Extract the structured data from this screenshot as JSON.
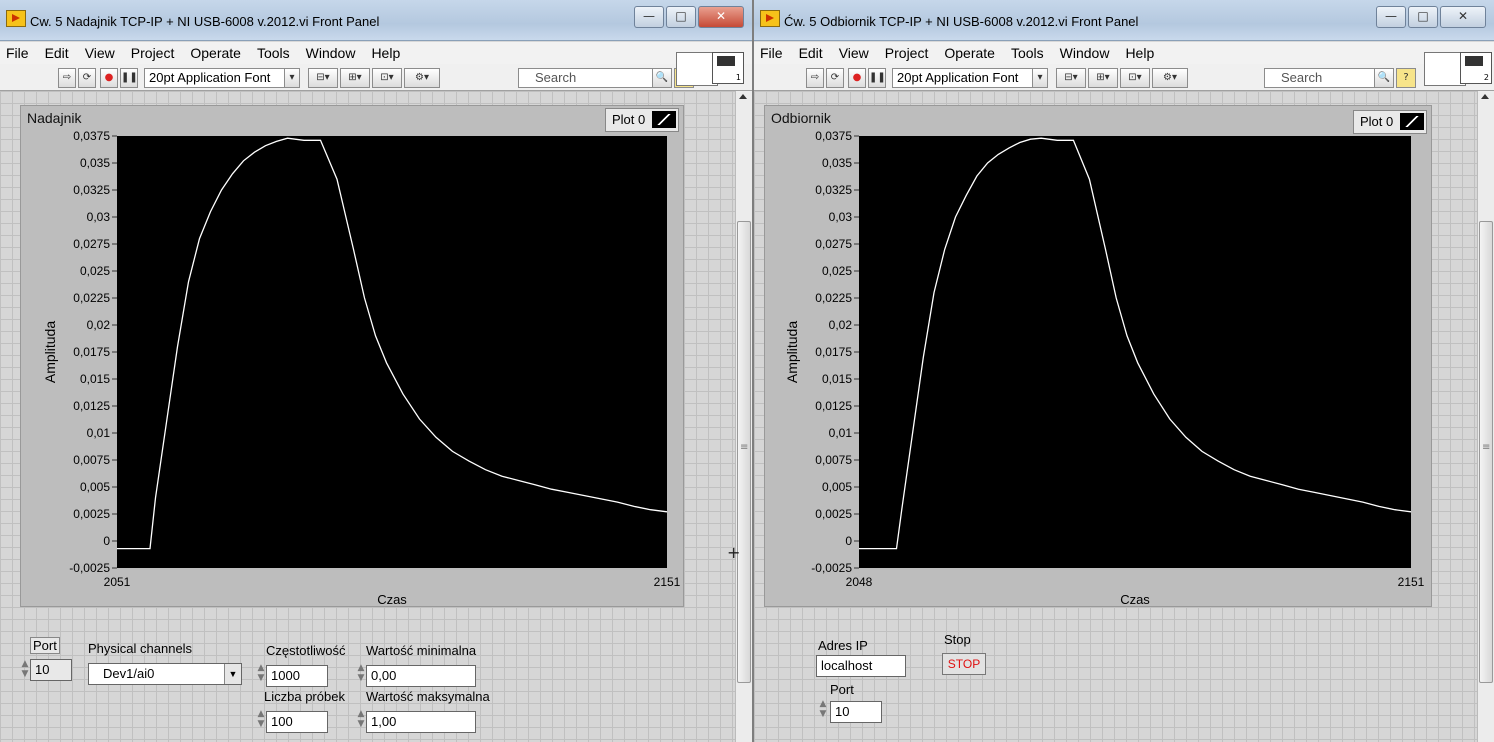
{
  "left_window": {
    "title": "Cw. 5 Nadajnik TCP-IP + NI USB-6008 v.2012.vi Front Panel",
    "menu": [
      "File",
      "Edit",
      "View",
      "Project",
      "Operate",
      "Tools",
      "Window",
      "Help"
    ],
    "font_selector": "20pt Application Font",
    "search_placeholder": "Search",
    "vi_icon_number": "1",
    "graph": {
      "label": "Nadajnik",
      "legend": "Plot 0",
      "ylabel": "Amplituda",
      "xlabel": "Czas",
      "x_min": "2051",
      "x_max": "2151",
      "y_ticks": [
        "0,0375",
        "0,035",
        "0,0325",
        "0,03",
        "0,0275",
        "0,025",
        "0,0225",
        "0,02",
        "0,0175",
        "0,015",
        "0,0125",
        "0,01",
        "0,0075",
        "0,005",
        "0,0025",
        "0",
        "-0,0025"
      ]
    },
    "controls": {
      "port_label": "Port",
      "port_value": "10",
      "physical_channels_label": "Physical channels",
      "physical_channels_value": "Dev1/ai0",
      "czestotliwosc_label": "Częstotliwość",
      "czestotliwosc_value": "1000",
      "liczba_probek_label": "Liczba próbek",
      "liczba_probek_value": "100",
      "min_label": "Wartość minimalna",
      "min_value": "0,00",
      "max_label": "Wartość maksymalna",
      "max_value": "1,00"
    }
  },
  "right_window": {
    "title": "Ćw. 5 Odbiornik TCP-IP + NI USB-6008 v.2012.vi Front Panel",
    "menu": [
      "File",
      "Edit",
      "View",
      "Project",
      "Operate",
      "Tools",
      "Window",
      "Help"
    ],
    "font_selector": "20pt Application Font",
    "search_placeholder": "Search",
    "vi_icon_number": "2",
    "graph": {
      "label": "Odbiornik",
      "legend": "Plot 0",
      "ylabel": "Amplituda",
      "xlabel": "Czas",
      "x_min": "2048",
      "x_max": "2151",
      "y_ticks": [
        "0,0375",
        "0,035",
        "0,0325",
        "0,03",
        "0,0275",
        "0,025",
        "0,0225",
        "0,02",
        "0,0175",
        "0,015",
        "0,0125",
        "0,01",
        "0,0075",
        "0,005",
        "0,0025",
        "0",
        "-0,0025"
      ]
    },
    "controls": {
      "adres_ip_label": "Adres IP",
      "adres_ip_value": "localhost",
      "stop_label": "Stop",
      "stop_button": "STOP",
      "port_label": "Port",
      "port_value": "10"
    }
  },
  "chart_data": [
    {
      "type": "line",
      "title": "Nadajnik",
      "xlabel": "Czas",
      "ylabel": "Amplituda",
      "xlim": [
        2051,
        2151
      ],
      "ylim": [
        -0.0025,
        0.0375
      ],
      "series": [
        {
          "name": "Plot 0",
          "color": "#ffffff",
          "x": [
            2051,
            2057,
            2058,
            2060,
            2062,
            2064,
            2066,
            2068,
            2070,
            2072,
            2074,
            2076,
            2078,
            2080,
            2082,
            2085,
            2088,
            2091,
            2094,
            2096,
            2098,
            2100,
            2103,
            2106,
            2109,
            2112,
            2115,
            2118,
            2121,
            2124,
            2127,
            2130,
            2133,
            2136,
            2139,
            2142,
            2145,
            2148,
            2151
          ],
          "y": [
            -0.0007,
            -0.0007,
            0.004,
            0.011,
            0.018,
            0.024,
            0.028,
            0.0305,
            0.0325,
            0.034,
            0.0352,
            0.036,
            0.0366,
            0.037,
            0.0373,
            0.0371,
            0.0371,
            0.0335,
            0.027,
            0.0225,
            0.019,
            0.0165,
            0.0136,
            0.0113,
            0.0096,
            0.0083,
            0.0074,
            0.0066,
            0.006,
            0.0056,
            0.0052,
            0.0048,
            0.0045,
            0.0042,
            0.0039,
            0.0036,
            0.0032,
            0.0029,
            0.0027
          ]
        }
      ]
    },
    {
      "type": "line",
      "title": "Odbiornik",
      "xlabel": "Czas",
      "ylabel": "Amplituda",
      "xlim": [
        2048,
        2151
      ],
      "ylim": [
        -0.0025,
        0.0375
      ],
      "series": [
        {
          "name": "Plot 0",
          "color": "#ffffff",
          "x": [
            2048,
            2055,
            2056,
            2058,
            2060,
            2062,
            2064,
            2066,
            2068,
            2070,
            2072,
            2074,
            2076,
            2078,
            2080,
            2082,
            2085,
            2088,
            2091,
            2094,
            2096,
            2098,
            2100,
            2103,
            2106,
            2109,
            2112,
            2115,
            2118,
            2121,
            2124,
            2127,
            2130,
            2133,
            2136,
            2139,
            2142,
            2145,
            2148,
            2151
          ],
          "y": [
            -0.0007,
            -0.0007,
            0.003,
            0.01,
            0.017,
            0.023,
            0.027,
            0.03,
            0.032,
            0.0338,
            0.035,
            0.0358,
            0.0364,
            0.0369,
            0.0372,
            0.0373,
            0.0371,
            0.0371,
            0.0335,
            0.027,
            0.0225,
            0.019,
            0.0165,
            0.0136,
            0.0113,
            0.0096,
            0.0083,
            0.0074,
            0.0066,
            0.006,
            0.0056,
            0.0052,
            0.0048,
            0.0045,
            0.0042,
            0.0039,
            0.0036,
            0.0032,
            0.0029,
            0.0027
          ]
        }
      ]
    }
  ]
}
